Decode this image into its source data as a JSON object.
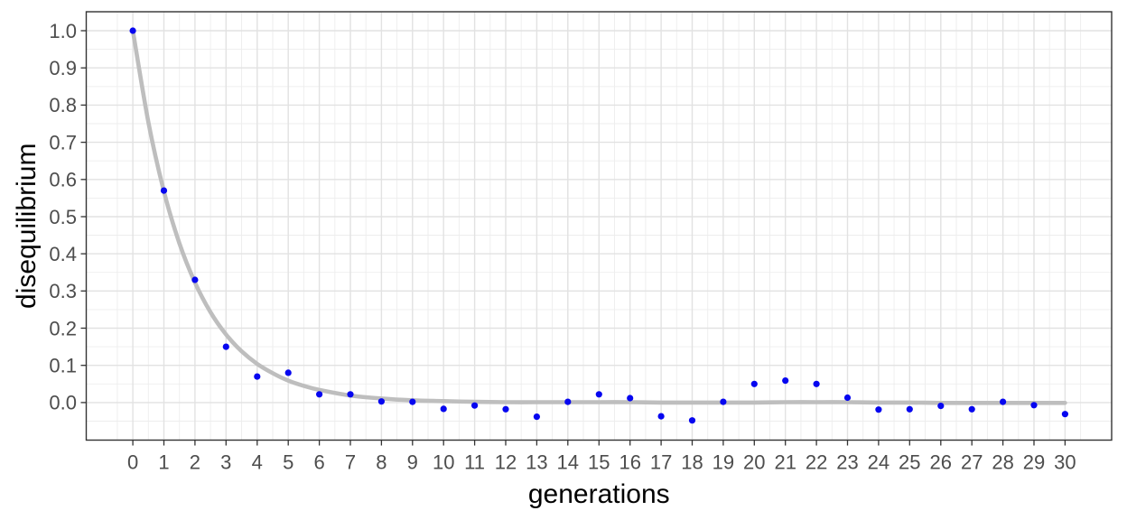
{
  "chart_data": {
    "type": "scatter",
    "title": "",
    "xlabel": "generations",
    "ylabel": "disequilibrium",
    "xlim": [
      -1.5,
      31.5
    ],
    "ylim": [
      -0.101,
      1.051
    ],
    "x_ticks": [
      0,
      1,
      2,
      3,
      4,
      5,
      6,
      7,
      8,
      9,
      10,
      11,
      12,
      13,
      14,
      15,
      16,
      17,
      18,
      19,
      20,
      21,
      22,
      23,
      24,
      25,
      26,
      27,
      28,
      29,
      30
    ],
    "y_tick_values": [
      0.0,
      0.1,
      0.2,
      0.3,
      0.4,
      0.5,
      0.6,
      0.7,
      0.8,
      0.9,
      1.0
    ],
    "y_tick_labels": [
      "0.0",
      "0.1",
      "0.2",
      "0.3",
      "0.4",
      "0.5",
      "0.6",
      "0.7",
      "0.8",
      "0.9",
      "1.0"
    ],
    "grid": "major+minor",
    "legend_position": "none",
    "points": {
      "x": [
        0,
        1,
        2,
        3,
        4,
        5,
        6,
        7,
        8,
        9,
        10,
        11,
        12,
        13,
        14,
        15,
        16,
        17,
        18,
        19,
        20,
        21,
        22,
        23,
        24,
        25,
        26,
        27,
        28,
        29,
        30
      ],
      "y": [
        1.0,
        0.57,
        0.33,
        0.15,
        0.07,
        0.08,
        0.022,
        0.022,
        0.003,
        0.002,
        -0.017,
        -0.008,
        -0.018,
        -0.038,
        0.002,
        0.022,
        0.012,
        -0.037,
        -0.048,
        0.002,
        0.05,
        0.059,
        0.05,
        0.013,
        -0.019,
        -0.018,
        -0.009,
        -0.018,
        0.002,
        -0.007,
        -0.031
      ]
    },
    "smooth_line": {
      "description": "fitted exponential decay, rate ~0.57 per generation",
      "x": [
        0,
        0.5,
        1,
        1.5,
        2,
        2.5,
        3,
        3.5,
        4,
        4.5,
        5,
        5.5,
        6,
        7,
        8,
        9,
        10,
        11,
        12,
        13,
        14,
        15,
        16,
        17,
        18,
        19,
        20,
        21,
        22,
        23,
        24,
        25,
        26,
        27,
        28,
        29,
        30
      ],
      "y": [
        1.0,
        0.754,
        0.568,
        0.428,
        0.323,
        0.243,
        0.183,
        0.138,
        0.104,
        0.079,
        0.059,
        0.045,
        0.034,
        0.019,
        0.011,
        0.006,
        0.004,
        0.002,
        0.001,
        0.001,
        0.001,
        0.001,
        0.001,
        0.0,
        0.0,
        0.0,
        0.0,
        0.001,
        0.001,
        0.001,
        0.0,
        0.0,
        -0.001,
        -0.001,
        -0.001,
        -0.001,
        -0.001
      ]
    },
    "colors": {
      "point": "#0606F0",
      "smooth_line": "#BEBEBE",
      "grid_major": "#E2E2E2",
      "grid_minor": "#EDEDED",
      "panel_border": "#333333",
      "tick_mark": "#333333",
      "tick_label": "#4D4D4D",
      "axis_title": "#000000",
      "background": "#FFFFFF"
    }
  }
}
